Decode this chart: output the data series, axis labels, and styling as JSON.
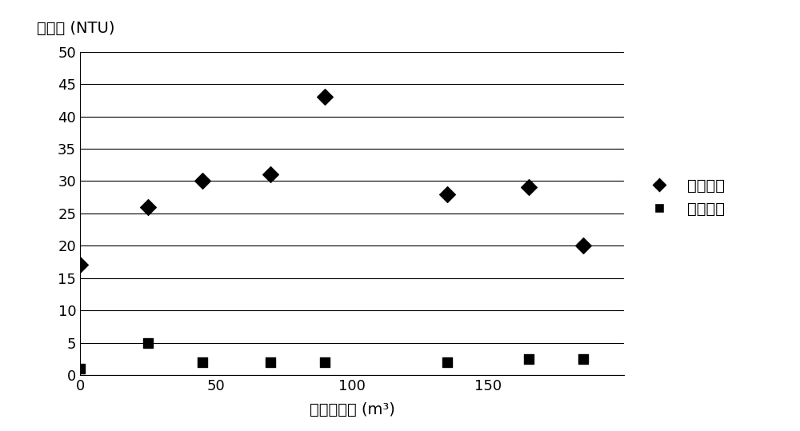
{
  "unpurified_x": [
    0,
    25,
    45,
    70,
    90,
    135,
    165,
    185
  ],
  "unpurified_y": [
    17,
    26,
    30,
    31,
    43,
    28,
    29,
    20
  ],
  "treated_x": [
    0,
    25,
    45,
    70,
    90,
    135,
    165,
    185
  ],
  "treated_y": [
    1,
    5,
    2,
    2,
    2,
    2,
    2.5,
    2.5
  ],
  "ylabel": "混濁度 (NTU)",
  "xlabel": "已處理體積 (m³)",
  "legend_unpurified": "未淨化水",
  "legend_treated": "已處理水",
  "xlim": [
    0,
    200
  ],
  "ylim": [
    0,
    50
  ],
  "yticks": [
    0,
    5,
    10,
    15,
    20,
    25,
    30,
    35,
    40,
    45,
    50
  ],
  "xticks": [
    0,
    50,
    100,
    150
  ],
  "marker_color": "#000000",
  "background_color": "#ffffff",
  "title_fontsize": 16,
  "label_fontsize": 14,
  "tick_fontsize": 13,
  "legend_fontsize": 14
}
